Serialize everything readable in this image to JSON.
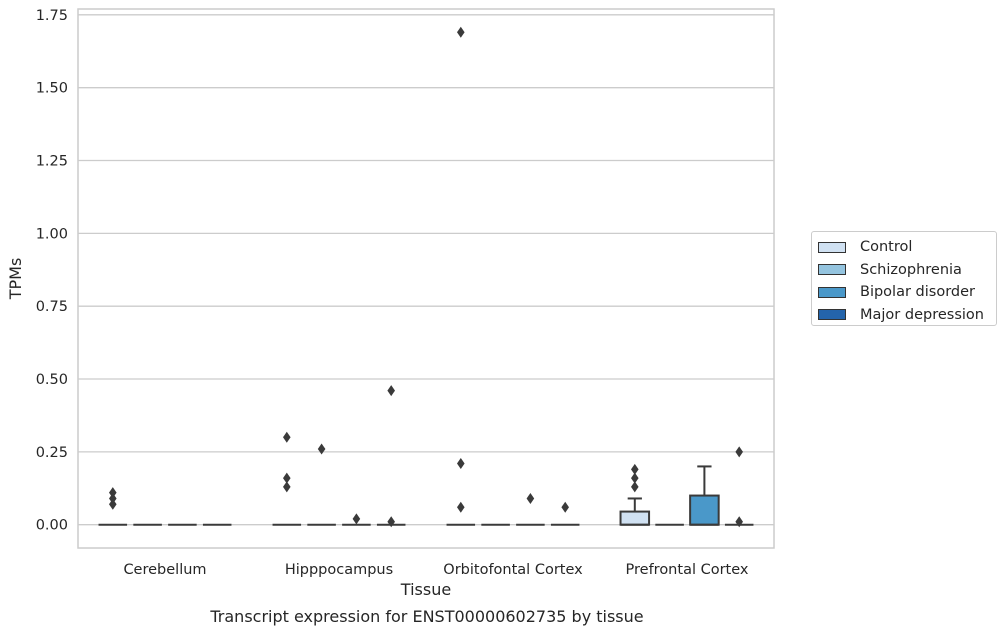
{
  "chart_data": {
    "type": "box",
    "caption": "Transcript expression for ENST00000602735 by tissue",
    "xlabel": "Tissue",
    "ylabel": "TPMs",
    "ylim": [
      -0.08,
      1.77
    ],
    "yticks": [
      "0.00",
      "0.25",
      "0.50",
      "0.75",
      "1.00",
      "1.25",
      "1.50",
      "1.75"
    ],
    "ytick_values": [
      0,
      0.25,
      0.5,
      0.75,
      1.0,
      1.25,
      1.5,
      1.75
    ],
    "grid": true,
    "legend_position": "right",
    "categories": [
      "Cerebellum",
      "Hipppocampus",
      "Orbitofontal Cortex",
      "Prefrontal Cortex"
    ],
    "series": [
      {
        "name": "Control",
        "color": "#d0e1f2",
        "boxes": [
          {
            "q1": 0,
            "median": 0,
            "q3": 0,
            "whislo": 0,
            "whishi": 0,
            "fliers": [
              0.07,
              0.09,
              0.11
            ]
          },
          {
            "q1": 0,
            "median": 0,
            "q3": 0,
            "whislo": 0,
            "whishi": 0,
            "fliers": [
              0.13,
              0.16,
              0.3
            ]
          },
          {
            "q1": 0,
            "median": 0,
            "q3": 0,
            "whislo": 0,
            "whishi": 0,
            "fliers": [
              0.06,
              0.21,
              1.69
            ]
          },
          {
            "q1": 0,
            "median": 0,
            "q3": 0.045,
            "whislo": 0,
            "whishi": 0.09,
            "fliers": [
              0.13,
              0.16,
              0.19
            ]
          }
        ]
      },
      {
        "name": "Schizophrenia",
        "color": "#94c4df",
        "boxes": [
          {
            "q1": 0,
            "median": 0,
            "q3": 0,
            "whislo": 0,
            "whishi": 0,
            "fliers": []
          },
          {
            "q1": 0,
            "median": 0,
            "q3": 0,
            "whislo": 0,
            "whishi": 0,
            "fliers": [
              0.26
            ]
          },
          {
            "q1": 0,
            "median": 0,
            "q3": 0,
            "whislo": 0,
            "whishi": 0,
            "fliers": []
          },
          {
            "q1": 0,
            "median": 0,
            "q3": 0,
            "whislo": 0,
            "whishi": 0,
            "fliers": []
          }
        ]
      },
      {
        "name": "Bipolar disorder",
        "color": "#4a98c9",
        "boxes": [
          {
            "q1": 0,
            "median": 0,
            "q3": 0,
            "whislo": 0,
            "whishi": 0,
            "fliers": []
          },
          {
            "q1": 0,
            "median": 0,
            "q3": 0,
            "whislo": 0,
            "whishi": 0,
            "fliers": [
              0.02
            ]
          },
          {
            "q1": 0,
            "median": 0,
            "q3": 0,
            "whislo": 0,
            "whishi": 0,
            "fliers": [
              0.09
            ]
          },
          {
            "q1": 0,
            "median": 0,
            "q3": 0.1,
            "whislo": 0,
            "whishi": 0.2,
            "fliers": []
          }
        ]
      },
      {
        "name": "Major depression",
        "color": "#2464ab",
        "boxes": [
          {
            "q1": 0,
            "median": 0,
            "q3": 0,
            "whislo": 0,
            "whishi": 0,
            "fliers": []
          },
          {
            "q1": 0,
            "median": 0,
            "q3": 0,
            "whislo": 0,
            "whishi": 0,
            "fliers": [
              0.01,
              0.46
            ]
          },
          {
            "q1": 0,
            "median": 0,
            "q3": 0,
            "whislo": 0,
            "whishi": 0,
            "fliers": [
              0.06
            ]
          },
          {
            "q1": 0,
            "median": 0,
            "q3": 0,
            "whislo": 0,
            "whishi": 0,
            "fliers": [
              0.01,
              0.25
            ]
          }
        ]
      }
    ]
  }
}
